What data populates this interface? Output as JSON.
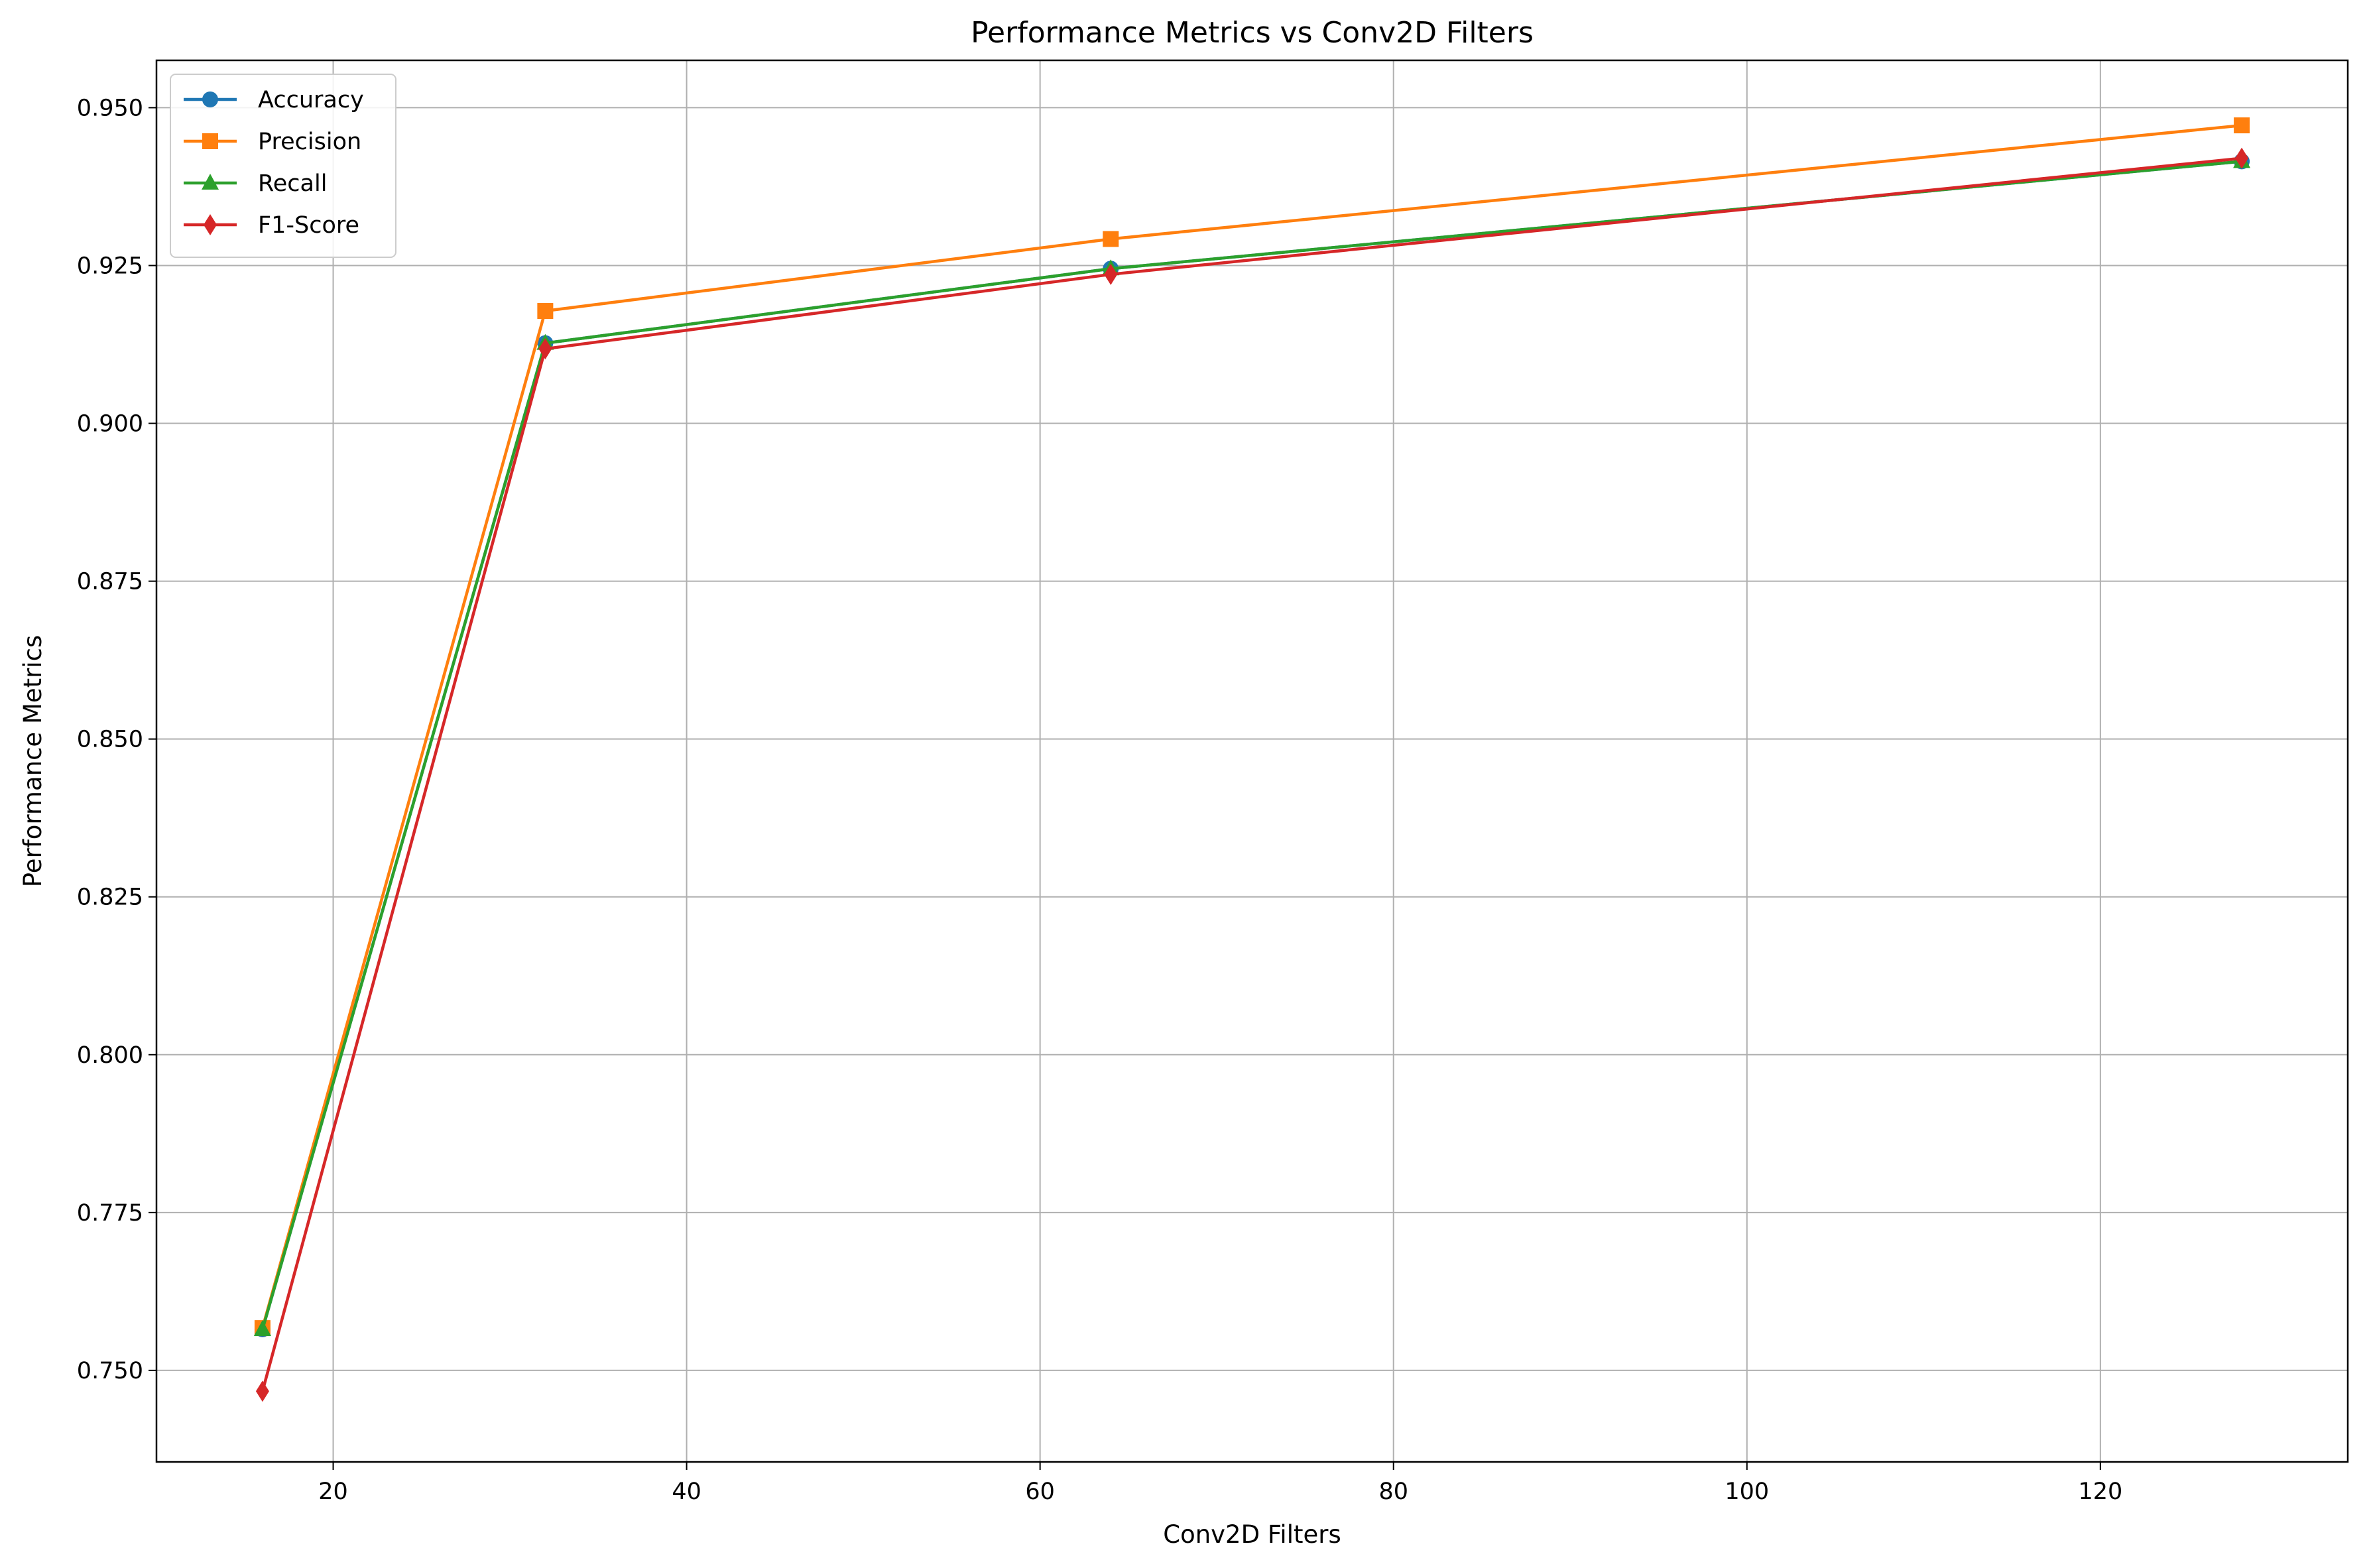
{
  "chart_data": {
    "type": "line",
    "title": "Performance Metrics vs Conv2D Filters",
    "xlabel": "Conv2D Filters",
    "ylabel": "Performance Metrics",
    "x": [
      16,
      32,
      64,
      128
    ],
    "xlim": [
      10,
      134
    ],
    "ylim": [
      0.7355,
      0.9575
    ],
    "xticks": [
      20,
      40,
      60,
      80,
      100,
      120
    ],
    "xtick_labels": [
      "20",
      "40",
      "60",
      "80",
      "100",
      "120"
    ],
    "yticks": [
      0.75,
      0.775,
      0.8,
      0.825,
      0.85,
      0.875,
      0.9,
      0.925,
      0.95
    ],
    "ytick_labels": [
      "0.750",
      "0.775",
      "0.800",
      "0.825",
      "0.850",
      "0.875",
      "0.900",
      "0.925",
      "0.950"
    ],
    "grid": true,
    "legend_position": "upper-left",
    "series": [
      {
        "name": "Accuracy",
        "values": [
          0.7565,
          0.9127,
          0.9245,
          0.9415
        ],
        "color": "#1f77b4",
        "marker": "circle"
      },
      {
        "name": "Precision",
        "values": [
          0.7567,
          0.9178,
          0.9292,
          0.9472
        ],
        "color": "#ff7f0e",
        "marker": "square"
      },
      {
        "name": "Recall",
        "values": [
          0.7565,
          0.9127,
          0.9245,
          0.9415
        ],
        "color": "#2ca02c",
        "marker": "triangle"
      },
      {
        "name": "F1-Score",
        "values": [
          0.7467,
          0.9118,
          0.9236,
          0.942
        ],
        "color": "#d62728",
        "marker": "diamond"
      }
    ]
  }
}
